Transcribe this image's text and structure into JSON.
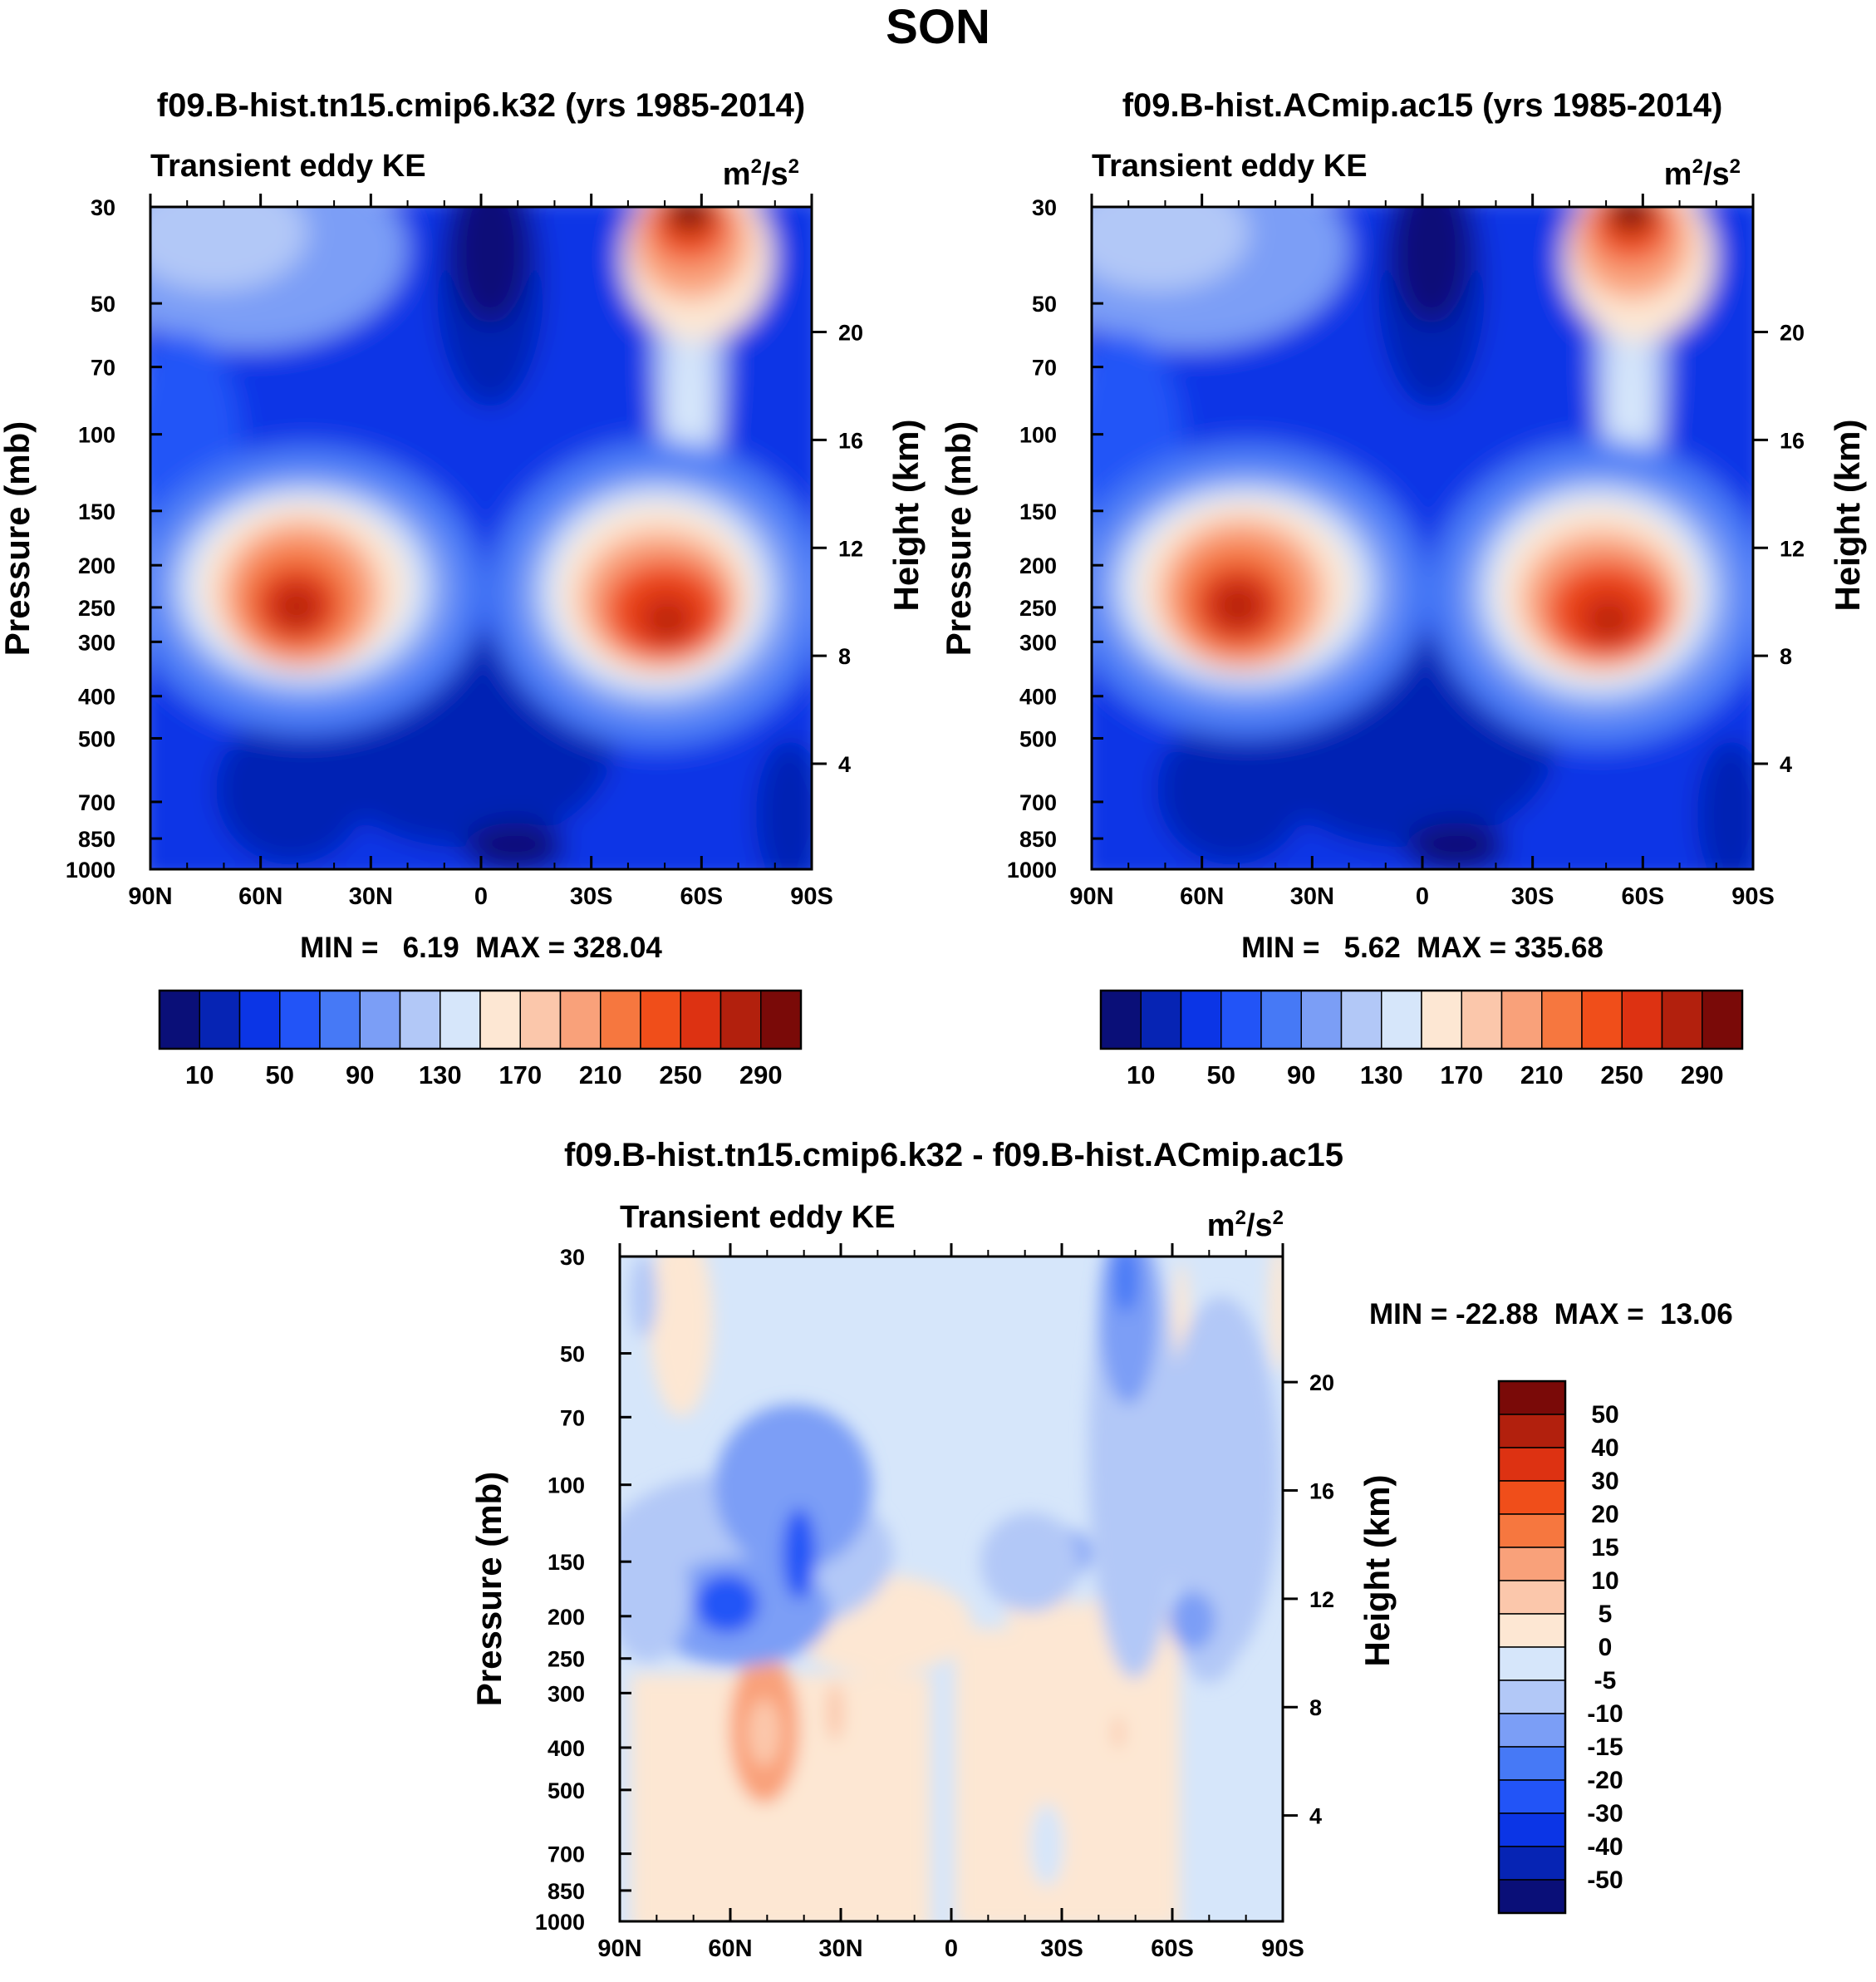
{
  "title": "SON",
  "chart_data": [
    {
      "type": "heatmap",
      "title": "f09.B-hist.tn15.cmip6.k32 (yrs 1985-2014)",
      "left_label": "Transient eddy KE",
      "units": "m²/s²",
      "units_base": "m",
      "units_mid": "/s",
      "units_sup": "2",
      "xlabel": "",
      "ylabel": "Pressure (mb)",
      "y2label": "Height (km)",
      "x_ticks": [
        "90N",
        "60N",
        "30N",
        "0",
        "30S",
        "60S",
        "90S"
      ],
      "y_ticks": [
        "30",
        "50",
        "70",
        "100",
        "150",
        "200",
        "250",
        "300",
        "400",
        "500",
        "700",
        "850",
        "1000"
      ],
      "y2_ticks": [
        "20",
        "16",
        "12",
        "8",
        "4"
      ],
      "stats": "MIN =   6.19  MAX = 328.04",
      "min": 6.19,
      "max": 328.04,
      "colorbar_labels": [
        "10",
        "50",
        "90",
        "130",
        "170",
        "210",
        "250",
        "290"
      ]
    },
    {
      "type": "heatmap",
      "title": "f09.B-hist.ACmip.ac15 (yrs 1985-2014)",
      "left_label": "Transient eddy KE",
      "units": "m²/s²",
      "units_base": "m",
      "units_mid": "/s",
      "units_sup": "2",
      "xlabel": "",
      "ylabel": "Pressure (mb)",
      "y2label": "Height (km)",
      "x_ticks": [
        "90N",
        "60N",
        "30N",
        "0",
        "30S",
        "60S",
        "90S"
      ],
      "y_ticks": [
        "30",
        "50",
        "70",
        "100",
        "150",
        "200",
        "250",
        "300",
        "400",
        "500",
        "700",
        "850",
        "1000"
      ],
      "y2_ticks": [
        "20",
        "16",
        "12",
        "8",
        "4"
      ],
      "stats": "MIN =   5.62  MAX = 335.68",
      "min": 5.62,
      "max": 335.68,
      "colorbar_labels": [
        "10",
        "50",
        "90",
        "130",
        "170",
        "210",
        "250",
        "290"
      ]
    },
    {
      "type": "heatmap",
      "title": "f09.B-hist.tn15.cmip6.k32 - f09.B-hist.ACmip.ac15",
      "left_label": "Transient eddy KE",
      "units": "m²/s²",
      "units_base": "m",
      "units_mid": "/s",
      "units_sup": "2",
      "xlabel": "",
      "ylabel": "Pressure (mb)",
      "y2label": "Height (km)",
      "x_ticks": [
        "90N",
        "60N",
        "30N",
        "0",
        "30S",
        "60S",
        "90S"
      ],
      "y_ticks": [
        "30",
        "50",
        "70",
        "100",
        "150",
        "200",
        "250",
        "300",
        "400",
        "500",
        "700",
        "850",
        "1000"
      ],
      "y2_ticks": [
        "20",
        "16",
        "12",
        "8",
        "4"
      ],
      "stats": "MIN = -22.88  MAX =  13.06",
      "min": -22.88,
      "max": 13.06,
      "colorbar_labels": [
        "50",
        "40",
        "30",
        "20",
        "15",
        "10",
        "5",
        "0",
        "-5",
        "-10",
        "-15",
        "-20",
        "-30",
        "-40",
        "-50"
      ]
    }
  ],
  "colors": {
    "abs_scale": [
      "#0a0f78",
      "#0624b4",
      "#0b35e6",
      "#2254f7",
      "#4679f6",
      "#7b9ef6",
      "#b2c8f7",
      "#d6e6fa",
      "#fde7d3",
      "#fbc7ab",
      "#f9a17a",
      "#f6773f",
      "#f04e1a",
      "#dd3212",
      "#b2200d",
      "#7a0a08"
    ],
    "diff_scale": [
      "#7a0a08",
      "#b2200d",
      "#dd3212",
      "#f04e1a",
      "#f6773f",
      "#f9a17a",
      "#fbc7ab",
      "#fde7d3",
      "#d6e6fa",
      "#b2c8f7",
      "#7b9ef6",
      "#4679f6",
      "#2254f7",
      "#0b35e6",
      "#0624b4",
      "#0a0f78"
    ]
  }
}
